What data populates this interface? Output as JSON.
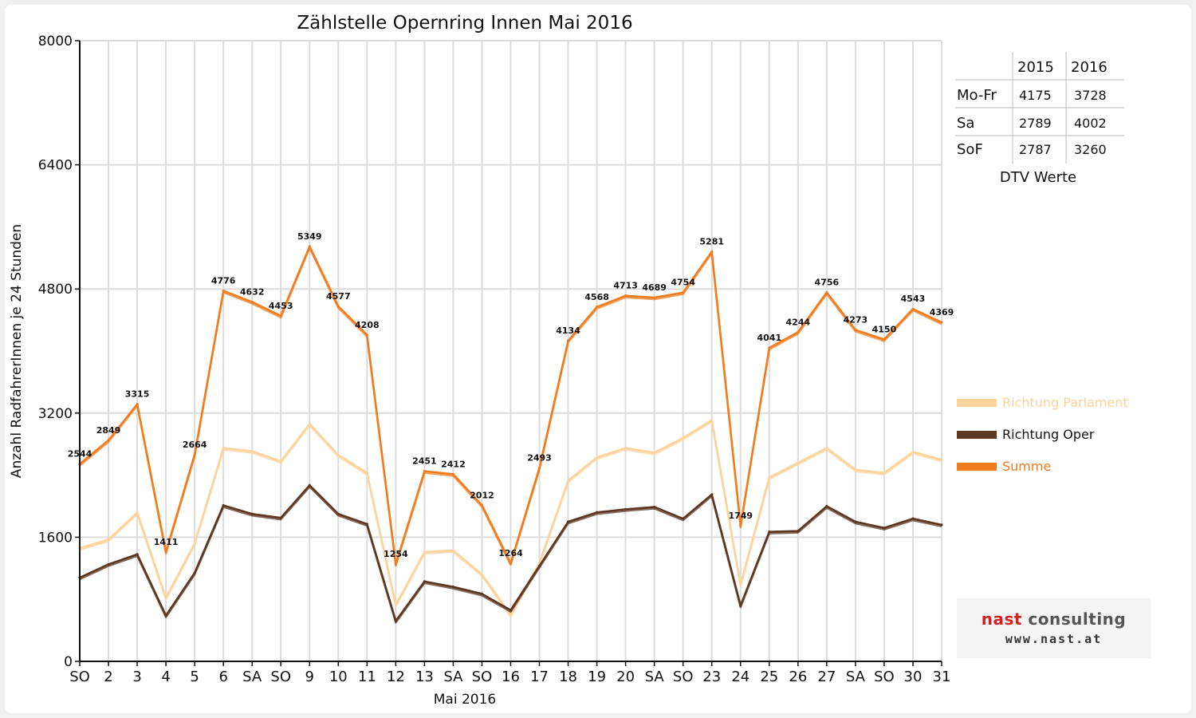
{
  "chart_data": {
    "type": "line",
    "title": "Zählstelle Opernring Innen Mai 2016",
    "xlabel": "Mai 2016",
    "ylabel": "Anzahl RadfahrerInnen je 24 Stunden",
    "ylim": [
      0,
      8000
    ],
    "yticks": [
      "0",
      "1600",
      "3200",
      "4800",
      "6400",
      "8000"
    ],
    "grid": true,
    "legend_position": "right",
    "categories": [
      "SO",
      "2",
      "3",
      "4",
      "5",
      "6",
      "SA",
      "SO",
      "9",
      "10",
      "11",
      "12",
      "13",
      "SA",
      "SO",
      "16",
      "17",
      "18",
      "19",
      "20",
      "SA",
      "SO",
      "23",
      "24",
      "25",
      "26",
      "27",
      "SA",
      "SO",
      "30",
      "31"
    ],
    "category_highlight": [
      true,
      false,
      false,
      false,
      true,
      false,
      false,
      true,
      false,
      false,
      false,
      false,
      false,
      false,
      true,
      true,
      false,
      false,
      false,
      false,
      false,
      true,
      false,
      false,
      false,
      true,
      false,
      false,
      true,
      false,
      false
    ],
    "series": [
      {
        "name": "Richtung Parlament",
        "color": "#fcd39b",
        "values": [
          1460,
          1570,
          1920,
          820,
          1520,
          2750,
          2710,
          2580,
          3060,
          2660,
          2430,
          730,
          1410,
          1430,
          1120,
          600,
          1270,
          2330,
          2630,
          2750,
          2690,
          2880,
          3110,
          990,
          2370,
          2560,
          2750,
          2470,
          2430,
          2700,
          2600
        ],
        "labels": []
      },
      {
        "name": "Richtung Oper",
        "color": "#5c3620",
        "values": [
          1080,
          1250,
          1380,
          590,
          1140,
          2010,
          1900,
          1850,
          2270,
          1900,
          1770,
          520,
          1030,
          960,
          870,
          660,
          1230,
          1800,
          1920,
          1960,
          1990,
          1840,
          2150,
          720,
          1670,
          1680,
          2000,
          1800,
          1720,
          1840,
          1760
        ],
        "labels": []
      },
      {
        "name": "Summe",
        "color": "#f07c1e",
        "values": [
          2544,
          2849,
          3315,
          1411,
          2664,
          4776,
          4632,
          4453,
          5349,
          4577,
          4208,
          1254,
          2451,
          2412,
          2012,
          1264,
          2493,
          4134,
          4568,
          4713,
          4689,
          4754,
          5281,
          1749,
          4041,
          4244,
          4756,
          4273,
          4150,
          4543,
          4369
        ],
        "labels": [
          "2544",
          "2849",
          "3315",
          "1411",
          "2664",
          "4776",
          "4632",
          "4453",
          "5349",
          "4577",
          "4208",
          "1254",
          "2451",
          "2412",
          "2012",
          "1264",
          "2493",
          "4134",
          "4568",
          "4713",
          "4689",
          "4754",
          "5281",
          "1749",
          "4041",
          "4244",
          "4756",
          "4273",
          "4150",
          "4543",
          "4369"
        ]
      }
    ]
  },
  "dtv_table": {
    "caption": "DTV Werte",
    "headers": [
      "",
      "2015",
      "2016"
    ],
    "rows": [
      {
        "label": "Mo-Fr",
        "v2015": "4175",
        "v2016": "3728"
      },
      {
        "label": "Sa",
        "v2015": "2789",
        "v2016": "4002"
      },
      {
        "label": "SoF",
        "v2015": "2787",
        "v2016": "3260"
      }
    ]
  },
  "logo": {
    "name_red": "nast",
    "name_gray": "consulting",
    "url": "www.nast.at"
  },
  "colors": {
    "highlight_day": "#e00000",
    "grid": "#dcdcdc",
    "axis": "#111111"
  }
}
